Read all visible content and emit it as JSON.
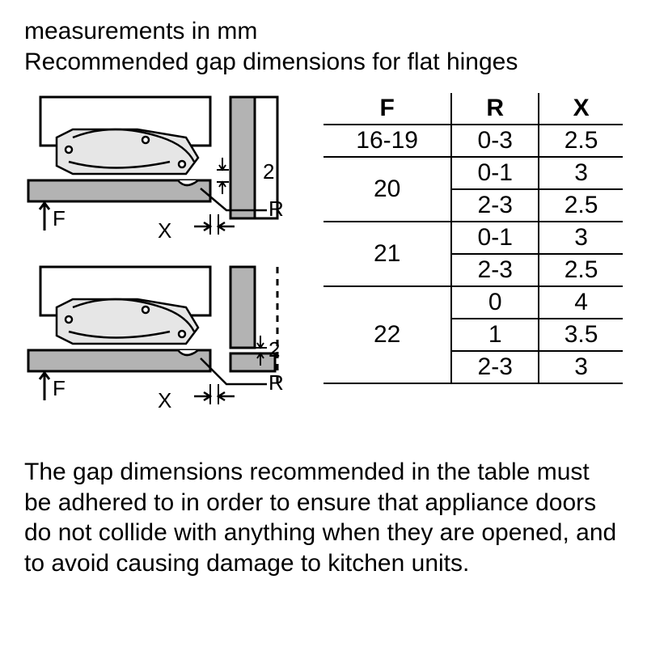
{
  "header": {
    "line1": "measurements in mm",
    "line2": "Recommended gap dimensions for flat hinges"
  },
  "table": {
    "columns": [
      "F",
      "R",
      "X"
    ],
    "rows": [
      {
        "f": "16-19",
        "r": "0-3",
        "x": "2.5",
        "f_rowspan": 1
      },
      {
        "f": "20",
        "r": "0-1",
        "x": "3",
        "f_rowspan": 2
      },
      {
        "f": null,
        "r": "2-3",
        "x": "2.5"
      },
      {
        "f": "21",
        "r": "0-1",
        "x": "3",
        "f_rowspan": 2
      },
      {
        "f": null,
        "r": "2-3",
        "x": "2.5"
      },
      {
        "f": "22",
        "r": "0",
        "x": "4",
        "f_rowspan": 3
      },
      {
        "f": null,
        "r": "1",
        "x": "3.5"
      },
      {
        "f": null,
        "r": "2-3",
        "x": "3"
      }
    ],
    "border_color": "#000000",
    "fontsize": 30
  },
  "diagram": {
    "labels": {
      "F": "F",
      "X": "X",
      "R": "R",
      "gap": "2"
    },
    "colors": {
      "stroke": "#000000",
      "fill_panel": "#b3b3b3",
      "fill_light": "#e6e6e6",
      "background": "#ffffff"
    },
    "stroke_width": 3
  },
  "footer": {
    "text": "The gap dimensions recommended in the table must be adhered to in order to ensure that appliance doors do not collide with anything when they are opened, and to avoid causing damage to kitchen units."
  }
}
